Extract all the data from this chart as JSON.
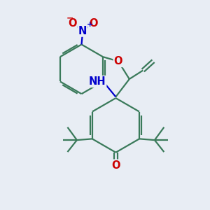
{
  "background_color": "#e8edf4",
  "line_color": "#3a7a5a",
  "atom_colors": {
    "O": "#cc0000",
    "N": "#0000cc",
    "H": "#555555",
    "C": "#3a7a5a"
  },
  "line_width": 1.6,
  "font_size": 10.5
}
